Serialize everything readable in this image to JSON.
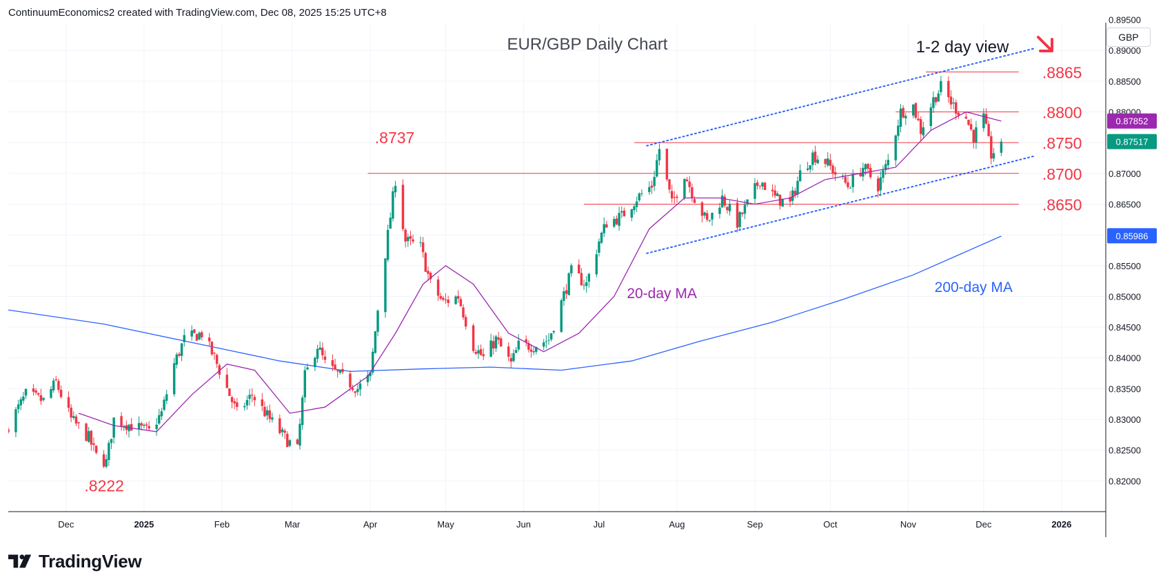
{
  "header": {
    "attribution": "ContinuumEconomics2 created with TradingView.com, Dec 08, 2025 15:25 UTC+8"
  },
  "currency_button": "GBP",
  "footer": {
    "logo_text": "TradingView"
  },
  "colors": {
    "up": "#089981",
    "down": "#f23645",
    "ma20": "#9c27b0",
    "ma200": "#2962ff",
    "level": "#f23645",
    "channel": "#2962ff",
    "annotation_red": "#f23645"
  },
  "chart_data": {
    "type": "candlestick",
    "title": "EUR/GBP Daily Chart",
    "subtitle": "1-2 day view",
    "subtitle_icon": "arrow-down-right-icon",
    "ylim": [
      0.815,
      0.8945
    ],
    "y_ticks": [
      "0.89500",
      "0.89000",
      "0.88500",
      "0.88000",
      "0.87500",
      "0.87000",
      "0.86500",
      "0.86000",
      "0.85500",
      "0.85000",
      "0.84500",
      "0.84000",
      "0.83500",
      "0.83000",
      "0.82500",
      "0.82000"
    ],
    "x_ticks": [
      {
        "label": "Dec",
        "date": "2024-12-01"
      },
      {
        "label": "2025",
        "date": "2025-01-01"
      },
      {
        "label": "Feb",
        "date": "2025-02-01"
      },
      {
        "label": "Mar",
        "date": "2025-03-01"
      },
      {
        "label": "Apr",
        "date": "2025-04-01"
      },
      {
        "label": "May",
        "date": "2025-05-01"
      },
      {
        "label": "Jun",
        "date": "2025-06-01"
      },
      {
        "label": "Jul",
        "date": "2025-07-01"
      },
      {
        "label": "Aug",
        "date": "2025-08-01"
      },
      {
        "label": "Sep",
        "date": "2025-09-01"
      },
      {
        "label": "Oct",
        "date": "2025-10-01"
      },
      {
        "label": "Nov",
        "date": "2025-11-01"
      },
      {
        "label": "Dec",
        "date": "2025-12-01"
      },
      {
        "label": "2026",
        "date": "2026-01-01"
      }
    ],
    "grid": true,
    "price_path": [
      {
        "date": "2024-11-08",
        "price": 0.829
      },
      {
        "date": "2024-11-15",
        "price": 0.834
      },
      {
        "date": "2024-11-22",
        "price": 0.833
      },
      {
        "date": "2024-11-27",
        "price": 0.836
      },
      {
        "date": "2024-12-03",
        "price": 0.83
      },
      {
        "date": "2024-12-10",
        "price": 0.827
      },
      {
        "date": "2024-12-13",
        "price": 0.824
      },
      {
        "date": "2024-12-17",
        "price": 0.823
      },
      {
        "date": "2024-12-20",
        "price": 0.83
      },
      {
        "date": "2024-12-27",
        "price": 0.829
      },
      {
        "date": "2025-01-03",
        "price": 0.828
      },
      {
        "date": "2025-01-08",
        "price": 0.831
      },
      {
        "date": "2025-01-13",
        "price": 0.839
      },
      {
        "date": "2025-01-17",
        "price": 0.843
      },
      {
        "date": "2025-01-24",
        "price": 0.844
      },
      {
        "date": "2025-01-29",
        "price": 0.84
      },
      {
        "date": "2025-02-04",
        "price": 0.834
      },
      {
        "date": "2025-02-07",
        "price": 0.831
      },
      {
        "date": "2025-02-13",
        "price": 0.834
      },
      {
        "date": "2025-02-20",
        "price": 0.83
      },
      {
        "date": "2025-02-26",
        "price": 0.827
      },
      {
        "date": "2025-03-03",
        "price": 0.825
      },
      {
        "date": "2025-03-06",
        "price": 0.837
      },
      {
        "date": "2025-03-11",
        "price": 0.842
      },
      {
        "date": "2025-03-14",
        "price": 0.839
      },
      {
        "date": "2025-03-20",
        "price": 0.837
      },
      {
        "date": "2025-03-27",
        "price": 0.835
      },
      {
        "date": "2025-04-01",
        "price": 0.837
      },
      {
        "date": "2025-04-04",
        "price": 0.848
      },
      {
        "date": "2025-04-08",
        "price": 0.86
      },
      {
        "date": "2025-04-11",
        "price": 0.869
      },
      {
        "date": "2025-04-15",
        "price": 0.859
      },
      {
        "date": "2025-04-21",
        "price": 0.858
      },
      {
        "date": "2025-04-25",
        "price": 0.852
      },
      {
        "date": "2025-04-30",
        "price": 0.849
      },
      {
        "date": "2025-05-06",
        "price": 0.85
      },
      {
        "date": "2025-05-12",
        "price": 0.842
      },
      {
        "date": "2025-05-16",
        "price": 0.84
      },
      {
        "date": "2025-05-21",
        "price": 0.843
      },
      {
        "date": "2025-05-27",
        "price": 0.839
      },
      {
        "date": "2025-05-30",
        "price": 0.842
      },
      {
        "date": "2025-06-05",
        "price": 0.842
      },
      {
        "date": "2025-06-11",
        "price": 0.843
      },
      {
        "date": "2025-06-16",
        "price": 0.849
      },
      {
        "date": "2025-06-20",
        "price": 0.854
      },
      {
        "date": "2025-06-26",
        "price": 0.852
      },
      {
        "date": "2025-07-01",
        "price": 0.859
      },
      {
        "date": "2025-07-04",
        "price": 0.862
      },
      {
        "date": "2025-07-10",
        "price": 0.863
      },
      {
        "date": "2025-07-16",
        "price": 0.866
      },
      {
        "date": "2025-07-22",
        "price": 0.868
      },
      {
        "date": "2025-07-25",
        "price": 0.874
      },
      {
        "date": "2025-07-30",
        "price": 0.865
      },
      {
        "date": "2025-08-04",
        "price": 0.87
      },
      {
        "date": "2025-08-08",
        "price": 0.866
      },
      {
        "date": "2025-08-13",
        "price": 0.862
      },
      {
        "date": "2025-08-19",
        "price": 0.866
      },
      {
        "date": "2025-08-25",
        "price": 0.862
      },
      {
        "date": "2025-08-29",
        "price": 0.865
      },
      {
        "date": "2025-09-03",
        "price": 0.869
      },
      {
        "date": "2025-09-09",
        "price": 0.866
      },
      {
        "date": "2025-09-15",
        "price": 0.865
      },
      {
        "date": "2025-09-19",
        "price": 0.87
      },
      {
        "date": "2025-09-24",
        "price": 0.873
      },
      {
        "date": "2025-09-29",
        "price": 0.872
      },
      {
        "date": "2025-10-03",
        "price": 0.87
      },
      {
        "date": "2025-10-08",
        "price": 0.868
      },
      {
        "date": "2025-10-14",
        "price": 0.871
      },
      {
        "date": "2025-10-20",
        "price": 0.868
      },
      {
        "date": "2025-10-24",
        "price": 0.872
      },
      {
        "date": "2025-10-29",
        "price": 0.88
      },
      {
        "date": "2025-11-03",
        "price": 0.881
      },
      {
        "date": "2025-11-06",
        "price": 0.877
      },
      {
        "date": "2025-11-11",
        "price": 0.882
      },
      {
        "date": "2025-11-14",
        "price": 0.884
      },
      {
        "date": "2025-11-19",
        "price": 0.881
      },
      {
        "date": "2025-11-24",
        "price": 0.879
      },
      {
        "date": "2025-11-27",
        "price": 0.876
      },
      {
        "date": "2025-12-01",
        "price": 0.879
      },
      {
        "date": "2025-12-04",
        "price": 0.873
      },
      {
        "date": "2025-12-08",
        "price": 0.8752
      }
    ],
    "ma20": [
      {
        "date": "2024-12-06",
        "price": 0.831
      },
      {
        "date": "2024-12-20",
        "price": 0.829
      },
      {
        "date": "2025-01-06",
        "price": 0.828
      },
      {
        "date": "2025-01-20",
        "price": 0.834
      },
      {
        "date": "2025-02-03",
        "price": 0.839
      },
      {
        "date": "2025-02-14",
        "price": 0.838
      },
      {
        "date": "2025-02-28",
        "price": 0.831
      },
      {
        "date": "2025-03-14",
        "price": 0.832
      },
      {
        "date": "2025-03-31",
        "price": 0.837
      },
      {
        "date": "2025-04-11",
        "price": 0.844
      },
      {
        "date": "2025-04-22",
        "price": 0.852
      },
      {
        "date": "2025-05-01",
        "price": 0.855
      },
      {
        "date": "2025-05-12",
        "price": 0.852
      },
      {
        "date": "2025-05-26",
        "price": 0.844
      },
      {
        "date": "2025-06-09",
        "price": 0.841
      },
      {
        "date": "2025-06-23",
        "price": 0.844
      },
      {
        "date": "2025-07-07",
        "price": 0.85
      },
      {
        "date": "2025-07-21",
        "price": 0.861
      },
      {
        "date": "2025-08-04",
        "price": 0.866
      },
      {
        "date": "2025-08-18",
        "price": 0.866
      },
      {
        "date": "2025-09-01",
        "price": 0.865
      },
      {
        "date": "2025-09-15",
        "price": 0.866
      },
      {
        "date": "2025-09-29",
        "price": 0.869
      },
      {
        "date": "2025-10-13",
        "price": 0.87
      },
      {
        "date": "2025-10-27",
        "price": 0.871
      },
      {
        "date": "2025-11-10",
        "price": 0.877
      },
      {
        "date": "2025-11-24",
        "price": 0.88
      },
      {
        "date": "2025-12-08",
        "price": 0.8785
      }
    ],
    "ma200": [
      {
        "date": "2024-11-08",
        "price": 0.8478
      },
      {
        "date": "2024-12-16",
        "price": 0.8455
      },
      {
        "date": "2025-01-20",
        "price": 0.8425
      },
      {
        "date": "2025-02-24",
        "price": 0.8395
      },
      {
        "date": "2025-03-24",
        "price": 0.8378
      },
      {
        "date": "2025-04-21",
        "price": 0.8382
      },
      {
        "date": "2025-05-19",
        "price": 0.8385
      },
      {
        "date": "2025-06-16",
        "price": 0.838
      },
      {
        "date": "2025-07-14",
        "price": 0.8395
      },
      {
        "date": "2025-08-11",
        "price": 0.8428
      },
      {
        "date": "2025-09-08",
        "price": 0.8458
      },
      {
        "date": "2025-10-06",
        "price": 0.8495
      },
      {
        "date": "2025-11-03",
        "price": 0.8535
      },
      {
        "date": "2025-12-08",
        "price": 0.8598
      }
    ],
    "levels": [
      {
        "label": ".8865",
        "value": 0.8865,
        "from": "2025-11-08",
        "to": "2025-12-15"
      },
      {
        "label": ".8800",
        "value": 0.88,
        "from": "2025-10-27",
        "to": "2025-12-15"
      },
      {
        "label": ".8750",
        "value": 0.875,
        "from": "2025-07-15",
        "to": "2025-12-15"
      },
      {
        "label": ".8700",
        "value": 0.87,
        "from": "2025-03-31",
        "to": "2025-12-15"
      },
      {
        "label": ".8650",
        "value": 0.865,
        "from": "2025-06-25",
        "to": "2025-12-15"
      }
    ],
    "channel": [
      {
        "from": {
          "date": "2025-07-20",
          "price": 0.8745
        },
        "to": {
          "date": "2025-12-21",
          "price": 0.8903
        }
      },
      {
        "from": {
          "date": "2025-07-20",
          "price": 0.857
        },
        "to": {
          "date": "2025-12-21",
          "price": 0.8728
        }
      }
    ],
    "annotations": [
      {
        "text": ".8737",
        "date": "2025-04-11",
        "price": 0.8737
      },
      {
        "text": ".8222",
        "date": "2024-12-17",
        "price": 0.8222
      }
    ],
    "ma_labels": [
      {
        "text": "20-day MA",
        "date": "2025-07-26",
        "price": 0.8506
      },
      {
        "text": "200-day MA",
        "date": "2025-11-27",
        "price": 0.8516
      }
    ],
    "price_badges": [
      {
        "text": "0.87852",
        "value": 0.87852,
        "color": "#9c27b0"
      },
      {
        "text": "0.87517",
        "value": 0.87517,
        "color": "#089981"
      },
      {
        "text": "0.85986",
        "value": 0.85986,
        "color": "#2962ff"
      }
    ]
  }
}
